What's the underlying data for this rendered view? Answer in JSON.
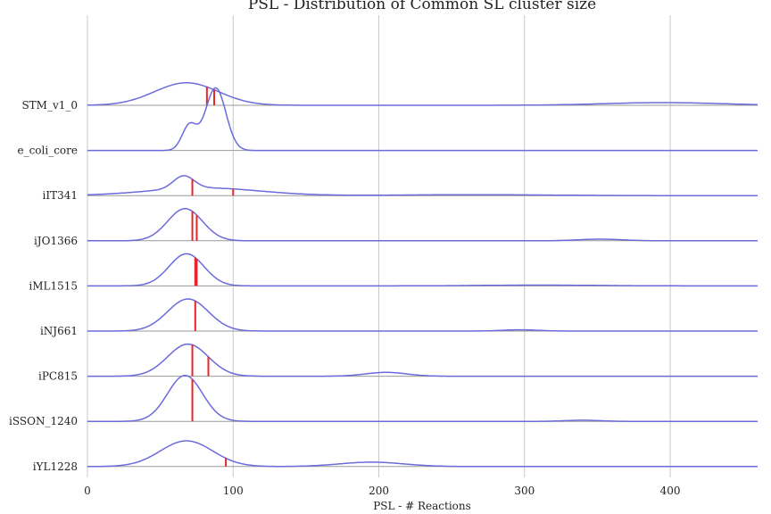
{
  "chart_data": {
    "type": "ridgeline",
    "title": "PSL - Distribution of Common SL cluster size",
    "xlabel": "PSL - # Reactions",
    "ylabel": "",
    "xlim": [
      0,
      460
    ],
    "xticks": [
      0,
      100,
      200,
      300,
      400
    ],
    "grid": true,
    "curve_color": "#6b6bdc",
    "marker_color": "#e8262a",
    "baseline_color": "#999999",
    "series": [
      {
        "name": "STM_v1_0",
        "density": {
          "components": [
            {
              "mu": 68,
              "sigma": 22,
              "w": 1.0
            },
            {
              "mu": 395,
              "sigma": 40,
              "w": 0.12
            }
          ],
          "scale": 0.7
        },
        "markers": [
          82,
          87
        ]
      },
      {
        "name": "e_coli_core",
        "density": {
          "components": [
            {
              "mu": 88,
              "sigma": 7,
              "w": 1.0
            },
            {
              "mu": 70,
              "sigma": 5,
              "w": 0.4
            }
          ],
          "scale": 1.95
        },
        "markers": []
      },
      {
        "name": "iIT341",
        "density": {
          "components": [
            {
              "mu": 66,
              "sigma": 7,
              "w": 1.0
            },
            {
              "mu": 80,
              "sigma": 38,
              "w": 0.6
            },
            {
              "mu": 265,
              "sigma": 50,
              "w": 0.07
            }
          ],
          "scale": 0.62
        },
        "markers": [
          72,
          100
        ]
      },
      {
        "name": "iJO1366",
        "density": {
          "components": [
            {
              "mu": 67,
              "sigma": 12,
              "w": 1.0
            },
            {
              "mu": 352,
              "sigma": 15,
              "w": 0.05
            }
          ],
          "scale": 1.0
        },
        "markers": [
          72,
          75
        ]
      },
      {
        "name": "iML1515",
        "density": {
          "components": [
            {
              "mu": 68,
              "sigma": 12,
              "w": 1.0
            },
            {
              "mu": 310,
              "sigma": 40,
              "w": 0.025
            }
          ],
          "scale": 1.0
        },
        "markers": [
          74,
          75
        ]
      },
      {
        "name": "iNJ661",
        "density": {
          "components": [
            {
              "mu": 69,
              "sigma": 14,
              "w": 1.0
            },
            {
              "mu": 297,
              "sigma": 12,
              "w": 0.04
            }
          ],
          "scale": 1.0
        },
        "markers": [
          74
        ]
      },
      {
        "name": "iPC815",
        "density": {
          "components": [
            {
              "mu": 69,
              "sigma": 14,
              "w": 1.0
            },
            {
              "mu": 205,
              "sigma": 14,
              "w": 0.12
            }
          ],
          "scale": 1.0
        },
        "markers": [
          72,
          83
        ]
      },
      {
        "name": "iSSON_1240",
        "density": {
          "components": [
            {
              "mu": 67,
              "sigma": 12,
              "w": 1.0
            },
            {
              "mu": 340,
              "sigma": 12,
              "w": 0.025
            }
          ],
          "scale": 1.43
        },
        "markers": [
          72
        ]
      },
      {
        "name": "iYL1228",
        "density": {
          "components": [
            {
              "mu": 68,
              "sigma": 18,
              "w": 1.0
            },
            {
              "mu": 195,
              "sigma": 22,
              "w": 0.17
            }
          ],
          "scale": 0.8
        },
        "markers": [
          95
        ]
      }
    ]
  }
}
